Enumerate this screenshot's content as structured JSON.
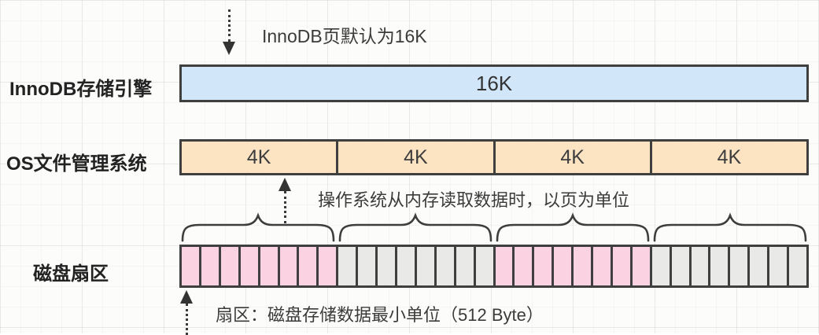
{
  "diagram": {
    "top_note": "InnoDB页默认为16K",
    "rows": {
      "innodb": {
        "label": "InnoDB存储引擎",
        "page_size": "16K"
      },
      "os": {
        "label": "OS文件管理系统",
        "pages": [
          "4K",
          "4K",
          "4K",
          "4K"
        ],
        "note": "操作系统从内存读取数据时，以页为单位"
      },
      "disk": {
        "label": "磁盘扇区",
        "note": "扇区：磁盘存储数据最小单位（512 Byte）",
        "brace_count": 4,
        "sector_groups": [
          {
            "color": "pink",
            "count": 8
          },
          {
            "color": "gray",
            "count": 8
          },
          {
            "color": "pink",
            "count": 8
          },
          {
            "color": "gray",
            "count": 8
          }
        ]
      }
    },
    "colors": {
      "innodb_fill": "#d2e6f9",
      "os_fill": "#fce4c3",
      "sector_pink": "#fad2e2",
      "sector_gray": "#e9e9e7",
      "border": "#3f3f3f"
    }
  }
}
